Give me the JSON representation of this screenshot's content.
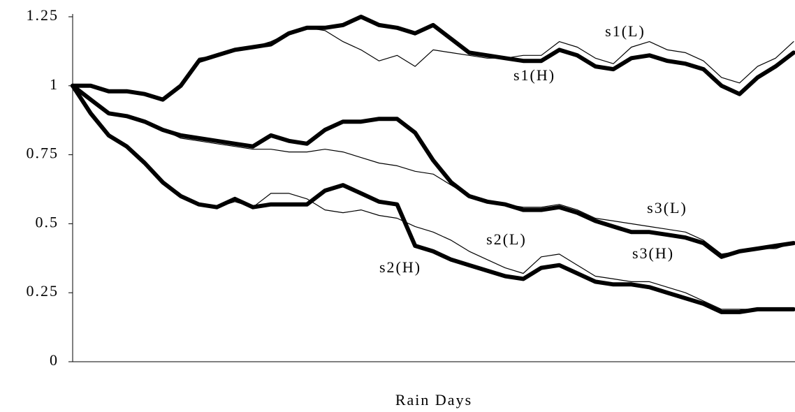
{
  "chart_data": {
    "type": "line",
    "x_label": "Rain Days",
    "categories": [
      null,
      null,
      null,
      null,
      null,
      null,
      null,
      null,
      null,
      null,
      null,
      null,
      null,
      null,
      null,
      null,
      null,
      null,
      null,
      null,
      null,
      null,
      null,
      null,
      null,
      null,
      null,
      null,
      null,
      null,
      null,
      null,
      null,
      null,
      null,
      null,
      null,
      null,
      null,
      null,
      null
    ],
    "ylim": [
      0,
      1.25
    ],
    "yticks": [
      0,
      0.25,
      0.5,
      0.75,
      1,
      1.25
    ],
    "grid": false,
    "series": [
      {
        "name": "s1(L)",
        "color": "#000000",
        "values": [
          1,
          1.0,
          0.98,
          0.98,
          0.97,
          0.95,
          1.0,
          1.1,
          1.11,
          1.13,
          1.14,
          1.16,
          1.19,
          1.21,
          1.2,
          1.16,
          1.13,
          1.09,
          1.11,
          1.07,
          1.13,
          1.12,
          1.11,
          1.1,
          1.1,
          1.11,
          1.11,
          1.16,
          1.14,
          1.1,
          1.08,
          1.14,
          1.16,
          1.13,
          1.12,
          1.09,
          1.03,
          1.01,
          1.07,
          1.1,
          1.16
        ]
      },
      {
        "name": "s1(H)",
        "color": "#000000",
        "values": [
          1,
          1.0,
          0.98,
          0.98,
          0.97,
          0.95,
          1.0,
          1.09,
          1.11,
          1.13,
          1.14,
          1.15,
          1.19,
          1.21,
          1.21,
          1.22,
          1.25,
          1.22,
          1.21,
          1.19,
          1.22,
          1.17,
          1.12,
          1.11,
          1.1,
          1.09,
          1.09,
          1.13,
          1.11,
          1.07,
          1.06,
          1.1,
          1.11,
          1.09,
          1.08,
          1.06,
          1.0,
          0.97,
          1.03,
          1.07,
          1.12
        ]
      },
      {
        "name": "s2(L)",
        "color": "#000000",
        "values": [
          1,
          0.9,
          0.82,
          0.78,
          0.72,
          0.65,
          0.6,
          0.57,
          0.56,
          0.58,
          0.56,
          0.61,
          0.61,
          0.59,
          0.55,
          0.54,
          0.55,
          0.53,
          0.52,
          0.49,
          0.47,
          0.44,
          0.4,
          0.37,
          0.34,
          0.32,
          0.38,
          0.39,
          0.35,
          0.31,
          0.3,
          0.29,
          0.29,
          0.27,
          0.25,
          0.22,
          0.19,
          0.19,
          0.19,
          0.19,
          0.19
        ]
      },
      {
        "name": "s2(H)",
        "color": "#000000",
        "values": [
          1,
          0.9,
          0.82,
          0.78,
          0.72,
          0.65,
          0.6,
          0.57,
          0.56,
          0.59,
          0.56,
          0.57,
          0.57,
          0.57,
          0.62,
          0.64,
          0.61,
          0.58,
          0.57,
          0.42,
          0.4,
          0.37,
          0.35,
          0.33,
          0.31,
          0.3,
          0.34,
          0.35,
          0.32,
          0.29,
          0.28,
          0.28,
          0.27,
          0.25,
          0.23,
          0.21,
          0.18,
          0.18,
          0.19,
          0.19,
          0.19
        ]
      },
      {
        "name": "s3(L)",
        "color": "#000000",
        "values": [
          1,
          0.95,
          0.9,
          0.89,
          0.87,
          0.84,
          0.81,
          0.8,
          0.79,
          0.78,
          0.77,
          0.77,
          0.76,
          0.76,
          0.77,
          0.76,
          0.74,
          0.72,
          0.71,
          0.69,
          0.68,
          0.64,
          0.6,
          0.58,
          0.57,
          0.56,
          0.56,
          0.57,
          0.55,
          0.52,
          0.51,
          0.5,
          0.49,
          0.48,
          0.47,
          0.44,
          0.39,
          0.4,
          0.41,
          0.41,
          0.43
        ]
      },
      {
        "name": "s3(H)",
        "color": "#000000",
        "values": [
          1,
          0.95,
          0.9,
          0.89,
          0.87,
          0.84,
          0.82,
          0.81,
          0.8,
          0.79,
          0.78,
          0.82,
          0.8,
          0.79,
          0.84,
          0.87,
          0.87,
          0.88,
          0.88,
          0.83,
          0.73,
          0.65,
          0.6,
          0.58,
          0.57,
          0.55,
          0.55,
          0.56,
          0.54,
          0.51,
          0.49,
          0.47,
          0.47,
          0.46,
          0.45,
          0.43,
          0.38,
          0.4,
          0.41,
          0.42,
          0.43
        ]
      }
    ]
  }
}
